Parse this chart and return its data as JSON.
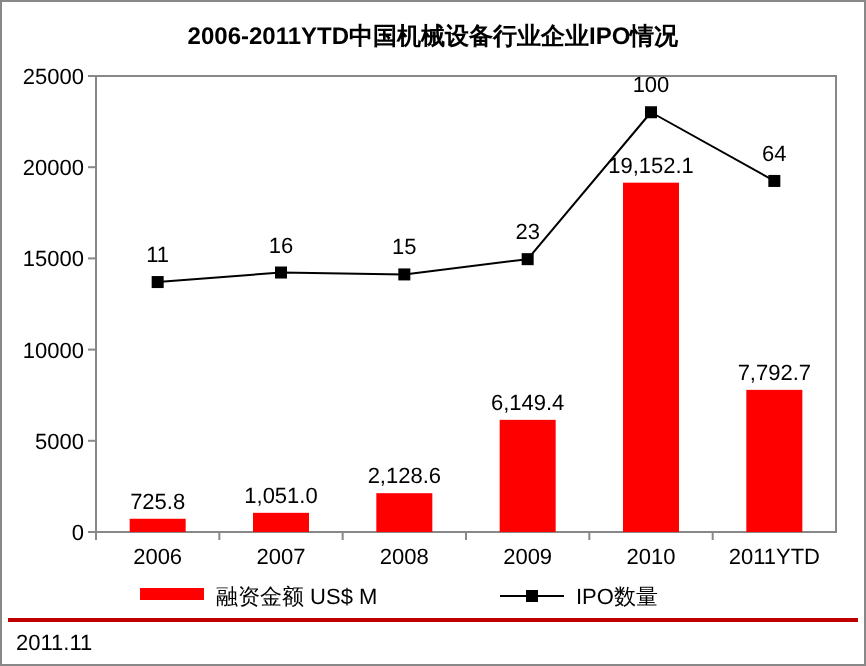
{
  "chart_data": {
    "type": "bar",
    "title": "2006-2011YTD中国机械设备行业企业IPO情况",
    "categories": [
      "2006",
      "2007",
      "2008",
      "2009",
      "2010",
      "2011YTD"
    ],
    "series": [
      {
        "name": "融资金额 US$ M",
        "color": "#ff0000",
        "values": [
          725.8,
          1051.0,
          2128.6,
          6149.4,
          19152.1,
          7792.7
        ],
        "value_labels": [
          "725.8",
          "1,051.0",
          "2,128.6",
          "6,149.4",
          "19,152.1",
          "7,792.7"
        ]
      },
      {
        "name": "IPO数量",
        "type": "line",
        "axis": "y2",
        "color": "#000000",
        "marker": "square",
        "values": [
          11,
          16,
          15,
          23,
          100,
          64
        ],
        "value_labels": [
          "11",
          "16",
          "15",
          "23",
          "100",
          "64"
        ]
      }
    ],
    "ylim": [
      0,
      25000
    ],
    "yticks": [
      0,
      5000,
      10000,
      15000,
      20000,
      25000
    ],
    "y2lim": [
      -120,
      119
    ],
    "legend": "bottom",
    "grid": false,
    "annotations": [
      "2011.11"
    ]
  }
}
